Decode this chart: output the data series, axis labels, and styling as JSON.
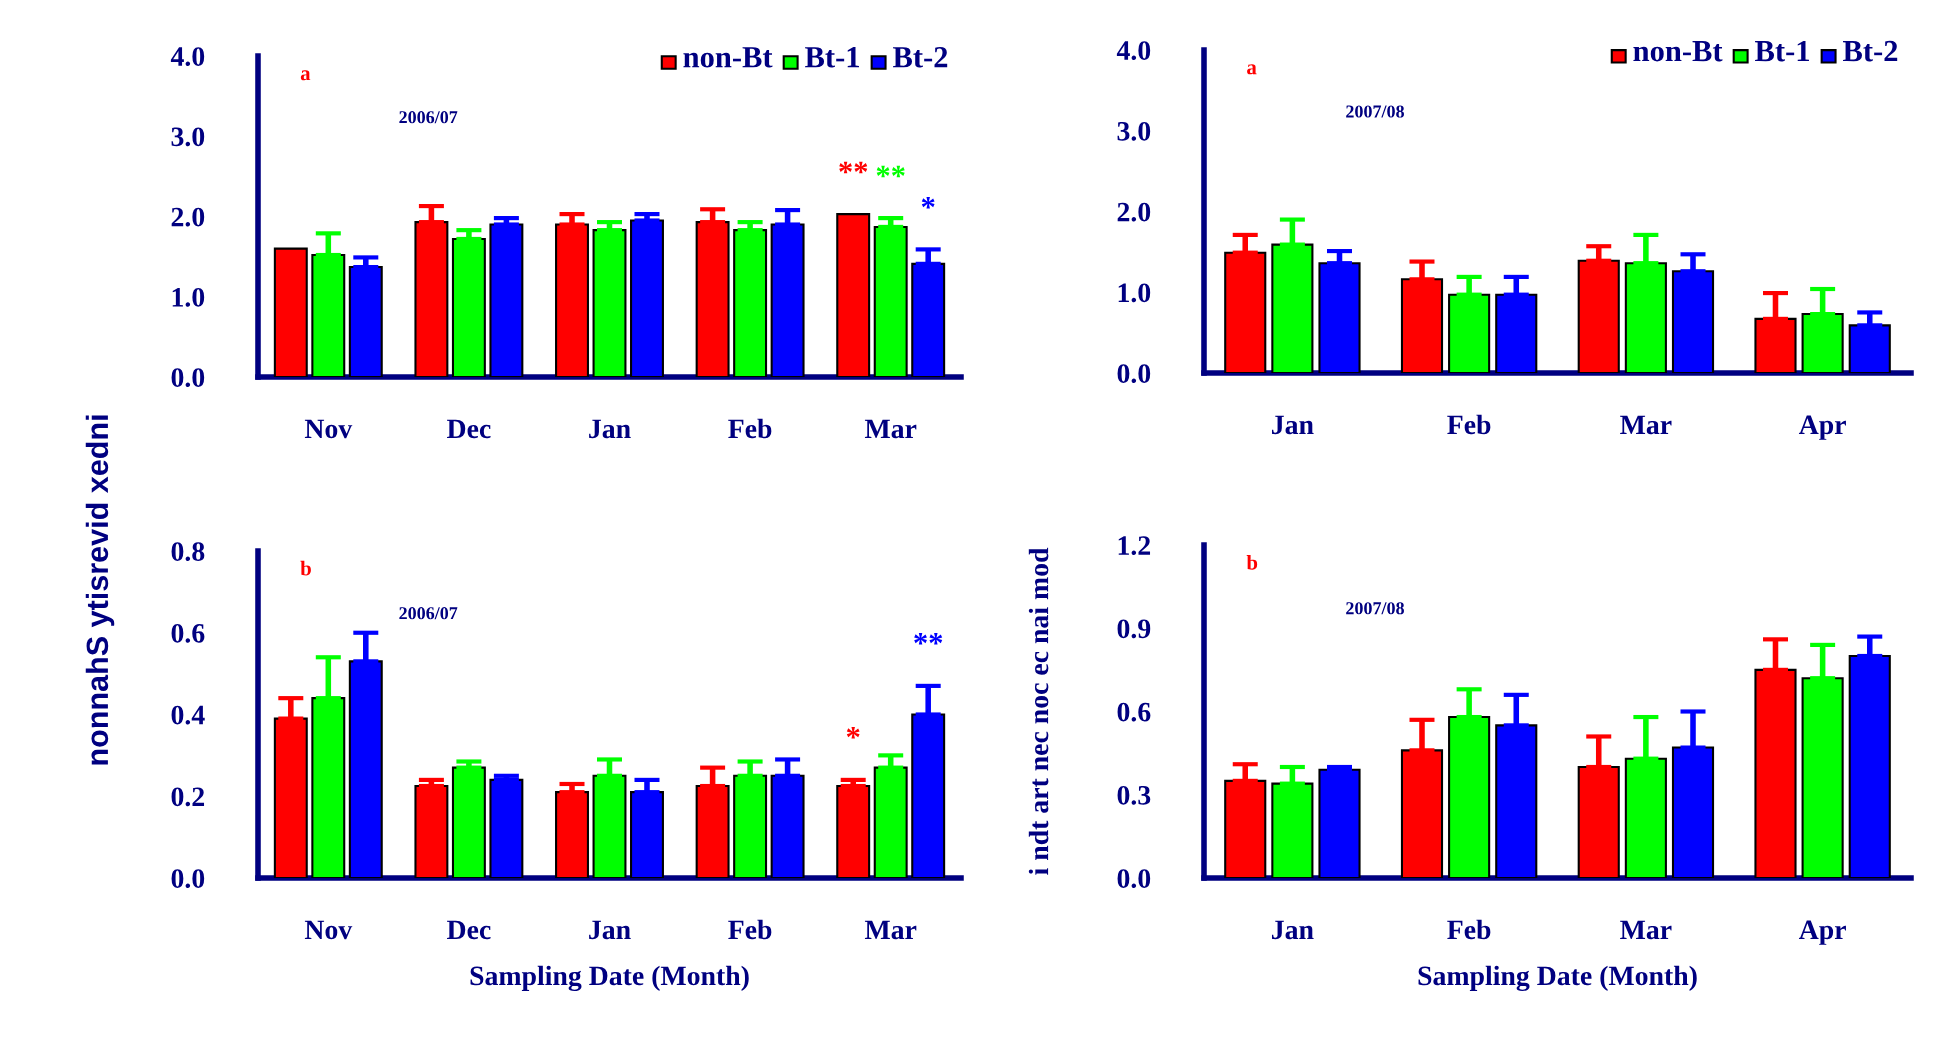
{
  "chart_data": [
    {
      "type": "bar",
      "title": "a",
      "subtitle": "2006/07",
      "ylabel": "nonnahS ytisrevid xedni",
      "categories": [
        "Nov",
        "Dec",
        "Jan",
        "Feb",
        "Mar"
      ],
      "ylim": [
        0,
        4.0
      ],
      "yticks": [
        {
          "value": 0,
          "label": "0.0"
        },
        {
          "value": 1,
          "label": "1.0"
        },
        {
          "value": 2,
          "label": "2.0"
        },
        {
          "value": 3,
          "label": "3.0"
        },
        {
          "value": 4,
          "label": "4.0"
        }
      ],
      "legend": "top right",
      "grid": false,
      "series": [
        {
          "name": "non-Bt",
          "color": "#ff0000",
          "values": [
            1.6,
            1.93,
            1.9,
            1.93,
            2.03
          ],
          "errors": [
            null,
            [
              1.93,
              2.13
            ],
            [
              1.9,
              2.03
            ],
            [
              1.93,
              2.09
            ],
            null
          ],
          "value_labels": [
            null,
            null,
            null,
            null,
            "**"
          ]
        },
        {
          "name": "Bt-1",
          "color": "#00ff00",
          "values": [
            1.52,
            1.72,
            1.83,
            1.83,
            1.87
          ],
          "errors": [
            [
              1.52,
              1.79
            ],
            [
              1.72,
              1.83
            ],
            [
              1.83,
              1.93
            ],
            [
              1.83,
              1.93
            ],
            [
              1.87,
              1.98
            ]
          ],
          "value_labels": [
            null,
            null,
            null,
            null,
            "**"
          ]
        },
        {
          "name": "Bt-2",
          "color": "#0000ff",
          "values": [
            1.37,
            1.9,
            1.95,
            1.9,
            1.41
          ],
          "errors": [
            [
              1.37,
              1.49
            ],
            [
              1.9,
              1.98
            ],
            [
              1.95,
              2.03
            ],
            [
              1.9,
              2.08
            ],
            [
              1.41,
              1.59
            ]
          ],
          "value_labels": [
            null,
            null,
            null,
            null,
            "*"
          ]
        }
      ]
    },
    {
      "type": "bar",
      "title": "a",
      "subtitle": "2007/08",
      "categories": [
        "Jan",
        "Feb",
        "Mar",
        "Apr"
      ],
      "ylim": [
        0,
        4.0
      ],
      "yticks": [
        {
          "value": 0,
          "label": "0.0"
        },
        {
          "value": 1,
          "label": "1.0"
        },
        {
          "value": 2,
          "label": "2.0"
        },
        {
          "value": 3,
          "label": "3.0"
        },
        {
          "value": 4,
          "label": "4.0"
        }
      ],
      "legend": "top right",
      "grid": false,
      "series": [
        {
          "name": "non-Bt",
          "color": "#ff0000",
          "values": [
            1.49,
            1.16,
            1.39,
            0.67
          ],
          "errors": [
            [
              1.49,
              1.71
            ],
            [
              1.16,
              1.38
            ],
            [
              1.39,
              1.57
            ],
            [
              0.67,
              0.99
            ]
          ]
        },
        {
          "name": "Bt-1",
          "color": "#00ff00",
          "values": [
            1.59,
            0.97,
            1.36,
            0.73
          ],
          "errors": [
            [
              1.59,
              1.9
            ],
            [
              0.97,
              1.19
            ],
            [
              1.36,
              1.71
            ],
            [
              0.73,
              1.04
            ]
          ]
        },
        {
          "name": "Bt-2",
          "color": "#0000ff",
          "values": [
            1.36,
            0.97,
            1.26,
            0.59
          ],
          "errors": [
            [
              1.36,
              1.51
            ],
            [
              0.97,
              1.19
            ],
            [
              1.26,
              1.47
            ],
            [
              0.59,
              0.75
            ]
          ]
        }
      ]
    },
    {
      "type": "bar",
      "title": "b",
      "subtitle": "2006/07",
      "xlabel": "Sampling Date (Month)",
      "categories": [
        "Nov",
        "Dec",
        "Jan",
        "Feb",
        "Mar"
      ],
      "ylim": [
        0,
        0.8
      ],
      "yticks": [
        {
          "value": 0,
          "label": "0.0"
        },
        0.2,
        0.4,
        0.6,
        0.8
      ],
      "legend": false,
      "grid": false,
      "series": [
        {
          "color": "#ff0000",
          "values": [
            0.39,
            0.225,
            0.21,
            0.225,
            0.225
          ],
          "errors": [
            [
              0.39,
              0.44
            ],
            [
              0.225,
              0.24
            ],
            [
              0.21,
              0.23
            ],
            [
              0.225,
              0.27
            ],
            [
              0.225,
              0.24
            ]
          ],
          "value_labels": [
            null,
            null,
            null,
            null,
            "*"
          ]
        },
        {
          "color": "#00ff00",
          "values": [
            0.44,
            0.27,
            0.25,
            0.25,
            0.27
          ],
          "errors": [
            [
              0.44,
              0.54
            ],
            [
              0.27,
              0.285
            ],
            [
              0.25,
              0.29
            ],
            [
              0.25,
              0.285
            ],
            [
              0.27,
              0.3
            ]
          ]
        },
        {
          "color": "#0000ff",
          "values": [
            0.53,
            0.24,
            0.21,
            0.25,
            0.4
          ],
          "errors": [
            [
              0.53,
              0.6
            ],
            [
              0.24,
              0.25
            ],
            [
              0.21,
              0.24
            ],
            [
              0.25,
              0.29
            ],
            [
              0.4,
              0.47
            ]
          ],
          "value_labels": [
            null,
            null,
            null,
            null,
            "**"
          ]
        }
      ]
    },
    {
      "type": "bar",
      "title": "b",
      "subtitle": "2007/08",
      "xlabel": "Sampling Date (Month)",
      "ylabel": "i ndt art nec noc ec nai mod",
      "categories": [
        "Jan",
        "Feb",
        "Mar",
        "Apr"
      ],
      "ylim": [
        0,
        1.2
      ],
      "yticks": [
        {
          "value": 0,
          "label": "0.0"
        },
        0.3,
        0.6,
        0.9,
        1.2
      ],
      "legend": false,
      "grid": false,
      "series": [
        {
          "color": "#ff0000",
          "values": [
            0.35,
            0.46,
            0.4,
            0.75
          ],
          "errors": [
            [
              0.35,
              0.41
            ],
            [
              0.46,
              0.57
            ],
            [
              0.4,
              0.51
            ],
            [
              0.75,
              0.86
            ]
          ]
        },
        {
          "color": "#00ff00",
          "values": [
            0.34,
            0.58,
            0.43,
            0.72
          ],
          "errors": [
            [
              0.34,
              0.4
            ],
            [
              0.58,
              0.68
            ],
            [
              0.43,
              0.58
            ],
            [
              0.72,
              0.84
            ]
          ]
        },
        {
          "color": "#0000ff",
          "values": [
            0.39,
            0.55,
            0.47,
            0.8
          ],
          "errors": [
            [
              0.39,
              0.4
            ],
            [
              0.55,
              0.66
            ],
            [
              0.47,
              0.6
            ],
            [
              0.8,
              0.87
            ]
          ]
        }
      ]
    }
  ]
}
